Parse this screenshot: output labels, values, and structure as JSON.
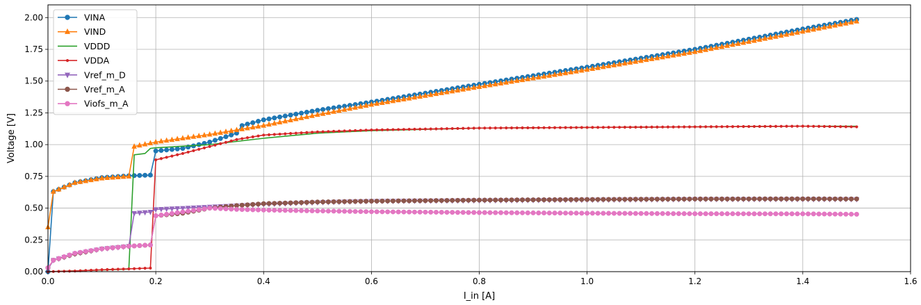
{
  "chart_data": {
    "type": "line",
    "xlabel": "I_in [A]",
    "ylabel": "Voltage [V]",
    "xlim": [
      0,
      1.6
    ],
    "ylim": [
      0,
      2.1
    ],
    "xticks": [
      "0.0",
      "0.2",
      "0.4",
      "0.6",
      "0.8",
      "1.0",
      "1.2",
      "1.4",
      "1.6"
    ],
    "yticks": [
      "0.00",
      "0.25",
      "0.50",
      "0.75",
      "1.00",
      "1.25",
      "1.50",
      "1.75",
      "2.00"
    ],
    "grid": true,
    "legend_position": "top-left",
    "series": [
      {
        "name": "VINA",
        "color": "#1f77b4",
        "marker": "circle",
        "x": [
          0,
          0.01,
          0.05,
          0.1,
          0.15,
          0.19,
          0.2,
          0.25,
          0.3,
          0.35,
          0.36,
          0.4,
          0.5,
          0.6,
          0.8,
          1.0,
          1.2,
          1.4,
          1.5
        ],
        "y": [
          0.0,
          0.63,
          0.7,
          0.74,
          0.755,
          0.76,
          0.95,
          0.97,
          1.02,
          1.09,
          1.15,
          1.195,
          1.27,
          1.335,
          1.475,
          1.61,
          1.75,
          1.91,
          1.985
        ]
      },
      {
        "name": "VIND",
        "color": "#ff7f0e",
        "marker": "triangle-up",
        "x": [
          0,
          0.01,
          0.05,
          0.1,
          0.15,
          0.16,
          0.2,
          0.3,
          0.4,
          0.5,
          0.6,
          0.8,
          1.0,
          1.2,
          1.4,
          1.5
        ],
        "y": [
          0.35,
          0.63,
          0.7,
          0.735,
          0.75,
          0.985,
          1.02,
          1.08,
          1.15,
          1.235,
          1.315,
          1.455,
          1.59,
          1.73,
          1.89,
          1.97
        ]
      },
      {
        "name": "VDDD",
        "color": "#2ca02c",
        "marker": "none",
        "x": [
          0,
          0.15,
          0.16,
          0.18,
          0.19,
          0.2,
          0.3,
          0.4,
          0.5,
          0.6,
          0.8,
          1.0,
          1.2,
          1.4,
          1.5
        ],
        "y": [
          0.0,
          0.02,
          0.92,
          0.93,
          0.97,
          0.975,
          1.0,
          1.05,
          1.09,
          1.11,
          1.13,
          1.135,
          1.14,
          1.145,
          1.145
        ]
      },
      {
        "name": "VDDA",
        "color": "#d62728",
        "marker": "dot",
        "x": [
          0,
          0.05,
          0.1,
          0.15,
          0.19,
          0.2,
          0.25,
          0.3,
          0.35,
          0.4,
          0.5,
          0.6,
          0.8,
          1.0,
          1.2,
          1.4,
          1.5
        ],
        "y": [
          0.0,
          0.005,
          0.015,
          0.022,
          0.028,
          0.88,
          0.93,
          0.985,
          1.04,
          1.075,
          1.1,
          1.115,
          1.13,
          1.135,
          1.14,
          1.145,
          1.14
        ]
      },
      {
        "name": "Vref_m_D",
        "color": "#9467bd",
        "marker": "triangle-down",
        "x": [
          0,
          0.01,
          0.05,
          0.1,
          0.15,
          0.16,
          0.19,
          0.2,
          0.25,
          0.3,
          0.4,
          0.5,
          0.6,
          0.8,
          1.0,
          1.2,
          1.4,
          1.5
        ],
        "y": [
          0.02,
          0.09,
          0.14,
          0.18,
          0.2,
          0.46,
          0.47,
          0.49,
          0.5,
          0.51,
          0.53,
          0.545,
          0.555,
          0.56,
          0.565,
          0.57,
          0.57,
          0.57
        ]
      },
      {
        "name": "Vref_m_A",
        "color": "#8c564b",
        "marker": "circle",
        "x": [
          0,
          0.01,
          0.05,
          0.1,
          0.15,
          0.19,
          0.2,
          0.25,
          0.3,
          0.35,
          0.4,
          0.5,
          0.6,
          0.8,
          1.0,
          1.2,
          1.4,
          1.5
        ],
        "y": [
          0.03,
          0.09,
          0.14,
          0.18,
          0.2,
          0.21,
          0.44,
          0.46,
          0.5,
          0.52,
          0.535,
          0.548,
          0.555,
          0.563,
          0.568,
          0.572,
          0.573,
          0.572
        ]
      },
      {
        "name": "Viofs_m_A",
        "color": "#e377c2",
        "marker": "circle",
        "x": [
          0,
          0.01,
          0.05,
          0.1,
          0.15,
          0.19,
          0.2,
          0.25,
          0.3,
          0.35,
          0.4,
          0.5,
          0.6,
          0.8,
          1.0,
          1.2,
          1.4,
          1.5
        ],
        "y": [
          0.03,
          0.09,
          0.145,
          0.18,
          0.2,
          0.21,
          0.44,
          0.47,
          0.5,
          0.49,
          0.485,
          0.478,
          0.472,
          0.465,
          0.46,
          0.456,
          0.455,
          0.452
        ]
      }
    ]
  }
}
